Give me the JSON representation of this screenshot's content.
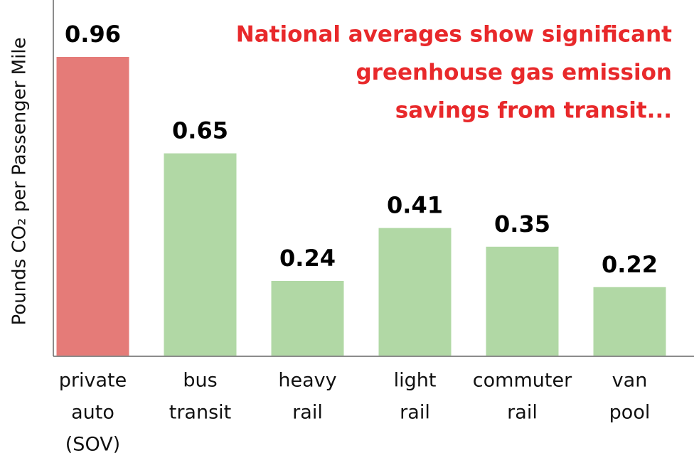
{
  "chart_data": {
    "type": "bar",
    "y_label": "Pounds CO₂ per Passenger Mile",
    "annotation": [
      "National averages show significant",
      "greenhouse gas emission",
      "savings from transit..."
    ],
    "categories": [
      [
        "private",
        "auto",
        "(SOV)"
      ],
      [
        "bus",
        "transit"
      ],
      [
        "heavy",
        "rail"
      ],
      [
        "light",
        "rail"
      ],
      [
        "commuter",
        "rail"
      ],
      [
        "van",
        "pool"
      ]
    ],
    "values": [
      0.96,
      0.65,
      0.24,
      0.41,
      0.35,
      0.22
    ],
    "colors": [
      "#e57b78",
      "#b1d8a5",
      "#b1d8a5",
      "#b1d8a5",
      "#b1d8a5",
      "#b1d8a5"
    ],
    "ylim": [
      0,
      1
    ]
  }
}
